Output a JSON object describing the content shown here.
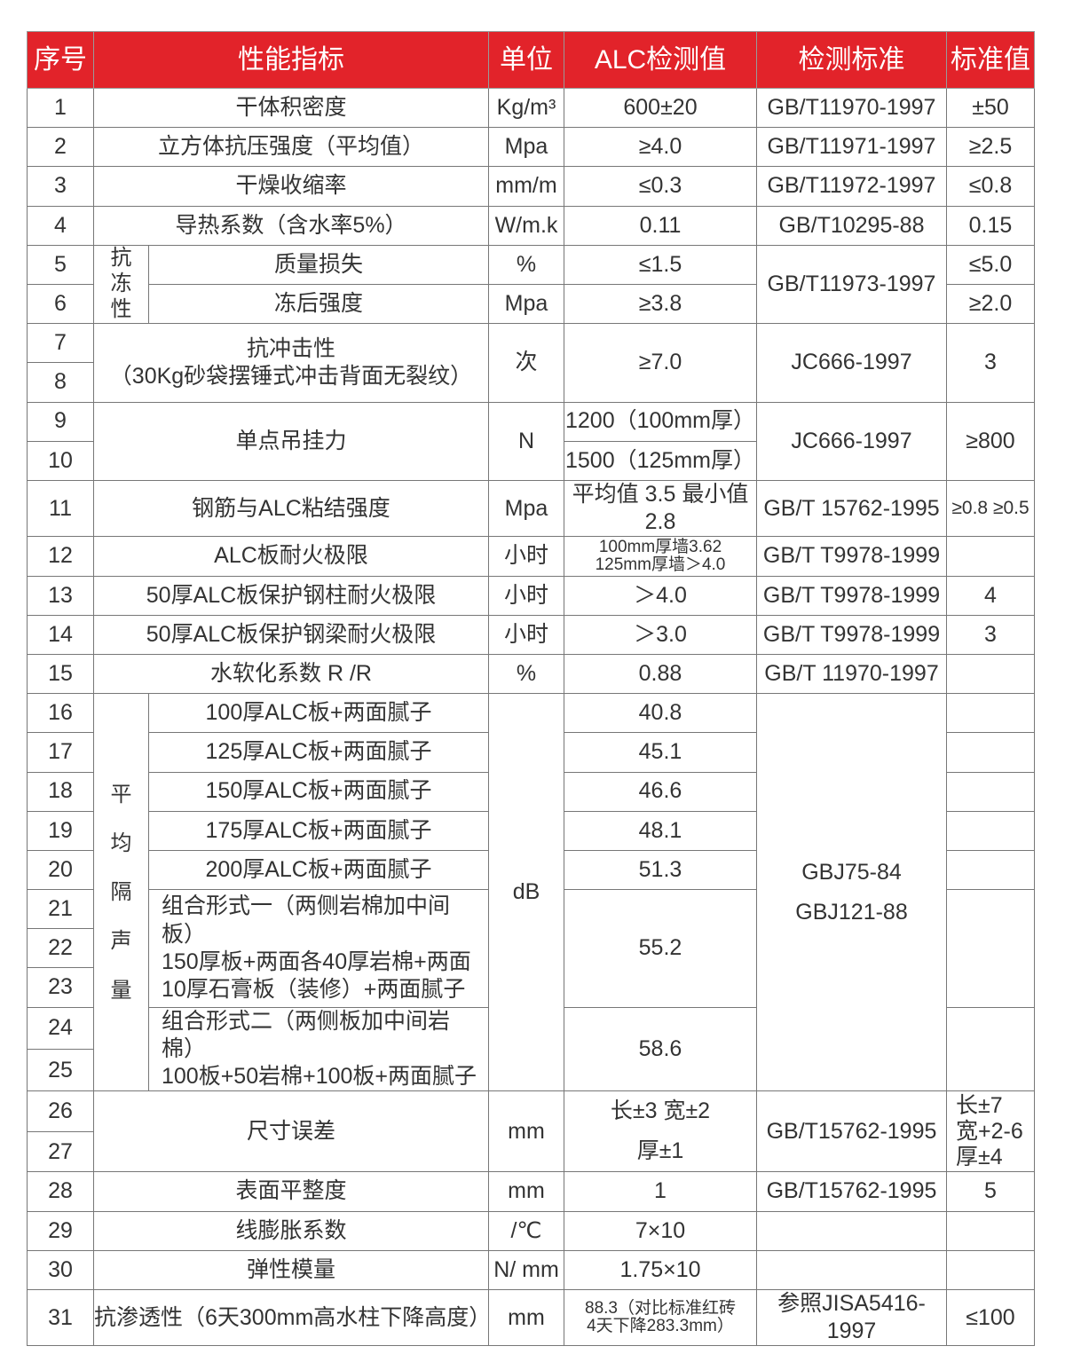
{
  "header": [
    "序号",
    "性能指标",
    "单位",
    "ALC检测值",
    "检测标准",
    "标准值"
  ],
  "nums": [
    "1",
    "2",
    "3",
    "4",
    "5",
    "6",
    "7",
    "8",
    "9",
    "10",
    "11",
    "12",
    "13",
    "14",
    "15",
    "16",
    "17",
    "18",
    "19",
    "20",
    "21",
    "22",
    "23",
    "24",
    "25",
    "26",
    "27",
    "28",
    "29",
    "30",
    "31"
  ],
  "r1": [
    "干体积密度",
    "Kg/m³",
    "600±20",
    "GB/T11970-1997",
    "±50"
  ],
  "r2": [
    "立方体抗压强度（平均值）",
    "Mpa",
    "≥4.0",
    "GB/T11971-1997",
    "≥2.5"
  ],
  "r3": [
    "干燥收缩率",
    "mm/m",
    "≤0.3",
    "GB/T11972-1997",
    "≤0.8"
  ],
  "r4": [
    "导热系数（含水率5%）",
    "W/m.k",
    "0.11",
    "GB/T10295-88",
    "0.15"
  ],
  "g56": {
    "group": "抗\n冻\n性",
    "std": "GB/T11973-1997",
    "r5": [
      "质量损失",
      "%",
      "≤1.5",
      "≤5.0"
    ],
    "r6": [
      "冻后强度",
      "Mpa",
      "≥3.8",
      "≥2.0"
    ]
  },
  "r78": [
    "抗冲击性\n（30Kg砂袋摆锤式冲击背面无裂纹）",
    "次",
    "≥7.0",
    "JC666-1997",
    "3"
  ],
  "r910": {
    "name": "单点吊挂力",
    "unit": "N",
    "alc9": "1200（100mm厚）",
    "alc10": "1500（125mm厚）",
    "std": "JC666-1997",
    "val": "≥800"
  },
  "r11": [
    "钢筋与ALC粘结强度",
    "Mpa",
    "平均值 3.5  最小值 2.8",
    "GB/T 15762-1995",
    "≥0.8 ≥0.5"
  ],
  "r12": [
    "ALC板耐火极限",
    "小时",
    "100mm厚墙3.62\n125mm厚墙＞4.0",
    "GB/T T9978-1999",
    ""
  ],
  "r13": [
    "50厚ALC板保护钢柱耐火极限",
    "小时",
    "＞4.0",
    "GB/T T9978-1999",
    "4"
  ],
  "r14": [
    "50厚ALC板保护钢梁耐火极限",
    "小时",
    "＞3.0",
    "GB/T T9978-1999",
    "3"
  ],
  "r15": [
    "水软化系数  R /R",
    "%",
    "0.88",
    "GB/T 11970-1997",
    ""
  ],
  "sound": {
    "group": "平\n均\n隔\n声\n量",
    "unit": "dB",
    "std": "GBJ75-84\nGBJ121-88",
    "items": [
      [
        "100厚ALC板+两面腻子",
        "40.8"
      ],
      [
        "125厚ALC板+两面腻子",
        "45.1"
      ],
      [
        "150厚ALC板+两面腻子",
        "46.6"
      ],
      [
        "175厚ALC板+两面腻子",
        "48.1"
      ],
      [
        "200厚ALC板+两面腻子",
        "51.3"
      ],
      [
        "组合形式一（两侧岩棉加中间板）\n150厚板+两面各40厚岩棉+两面\n10厚石膏板（装修）+两面腻子",
        "55.2"
      ],
      [
        "组合形式二（两侧板加中间岩棉）\n100板+50岩棉+100板+两面腻子",
        "58.6"
      ]
    ]
  },
  "r2627": [
    "尺寸误差",
    "mm",
    "长±3    宽±2\n厚±1",
    "GB/T15762-1995",
    "长±7\n宽+2-6\n厚±4"
  ],
  "r28": [
    "表面平整度",
    "mm",
    "1",
    "GB/T15762-1995",
    "5"
  ],
  "r29": [
    "线膨胀系数",
    "/℃",
    "7×10",
    "",
    ""
  ],
  "r30": [
    "弹性模量",
    "N/ mm",
    "1.75×10",
    "",
    ""
  ],
  "r31": [
    "抗渗透性（6天300mm高水柱下降高度）",
    "mm",
    "88.3（对比标准红砖\n4天下降283.3mm）",
    "参照JISA5416-1997",
    "≤100"
  ],
  "colors": {
    "header_bg": "#e2232a",
    "header_text": "#ffffff",
    "border": "#777777"
  }
}
